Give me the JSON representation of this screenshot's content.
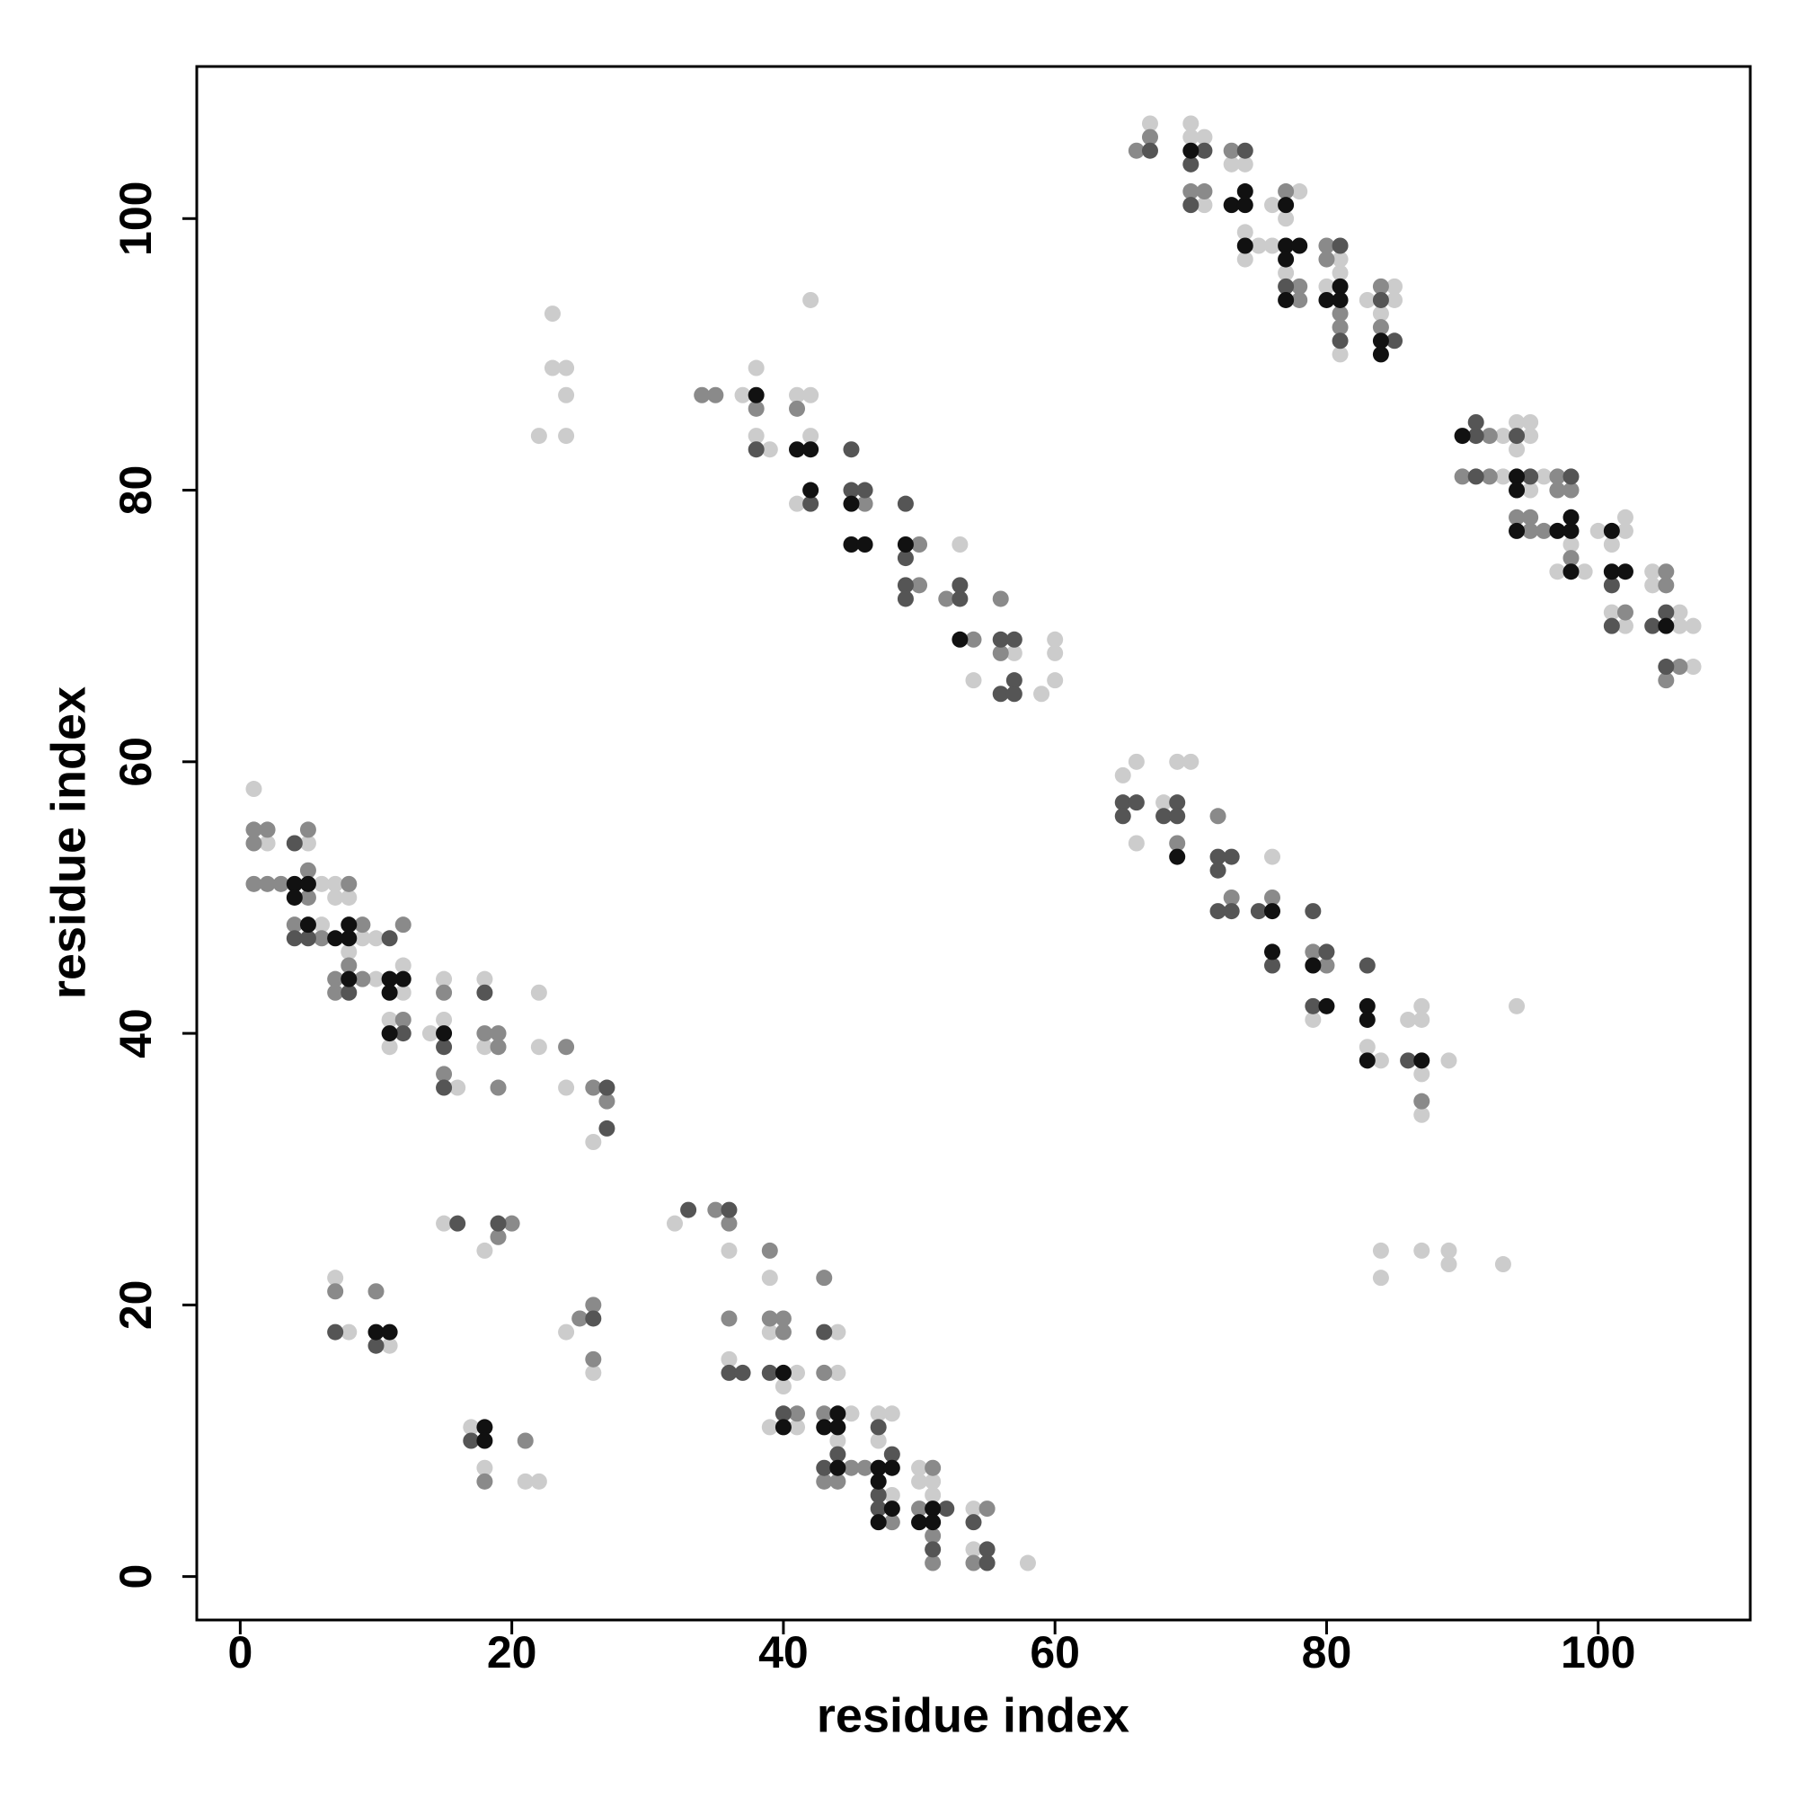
{
  "chart_data": {
    "type": "scatter",
    "xlabel": "residue index",
    "ylabel": "residue index",
    "xlim": [
      -3.2,
      111.2
    ],
    "ylim": [
      -3.2,
      111.2
    ],
    "xticks": [
      0,
      20,
      40,
      60,
      80,
      100
    ],
    "yticks": [
      0,
      20,
      40,
      60,
      80,
      100
    ],
    "series": [
      {
        "color": "#cccccc",
        "x": [
          1,
          2,
          5,
          6,
          7,
          7,
          8,
          6,
          9,
          10,
          8,
          10,
          12,
          12,
          11,
          11,
          14,
          15,
          15,
          18,
          18,
          16,
          22,
          22,
          24,
          26,
          7,
          8,
          11,
          15,
          18,
          24,
          26,
          17,
          18,
          21,
          22,
          32,
          36,
          39,
          39,
          44,
          36,
          41,
          44,
          40,
          45,
          39,
          41,
          44,
          47,
          48,
          47,
          48,
          50,
          50,
          51,
          51,
          54,
          54,
          58,
          23,
          23,
          24,
          24,
          22,
          24,
          42,
          37,
          38,
          38,
          39,
          41,
          42,
          42,
          41,
          53,
          57,
          54,
          59,
          60,
          60,
          60,
          65,
          66,
          69,
          70,
          68,
          66,
          76,
          79,
          83,
          84,
          86,
          87,
          87,
          87,
          87,
          89,
          94,
          84,
          84,
          87,
          89,
          89,
          93,
          67,
          70,
          70,
          71,
          73,
          74,
          71,
          76,
          78,
          77,
          74,
          75,
          76,
          77,
          74,
          81,
          81,
          80,
          81,
          83,
          85,
          84,
          85,
          93,
          94,
          95,
          95,
          93,
          95,
          94,
          96,
          98,
          97,
          99,
          100,
          102,
          102,
          101,
          101,
          102,
          104,
          104,
          106,
          107,
          106,
          107
        ],
        "y": [
          58,
          54,
          54,
          51,
          51,
          50,
          50,
          48,
          47,
          47,
          46,
          44,
          45,
          43,
          41,
          39,
          40,
          41,
          44,
          44,
          39,
          36,
          43,
          39,
          36,
          32,
          22,
          18,
          17,
          26,
          24,
          18,
          15,
          11,
          8,
          7,
          7,
          26,
          24,
          22,
          18,
          18,
          16,
          15,
          15,
          14,
          12,
          11,
          11,
          10,
          12,
          12,
          10,
          6,
          8,
          7,
          7,
          6,
          5,
          2,
          1,
          93,
          89,
          89,
          87,
          84,
          84,
          94,
          87,
          89,
          84,
          83,
          87,
          87,
          84,
          79,
          76,
          68,
          66,
          65,
          69,
          68,
          66,
          59,
          60,
          60,
          60,
          57,
          54,
          53,
          41,
          39,
          38,
          41,
          41,
          42,
          37,
          34,
          38,
          42,
          24,
          22,
          24,
          24,
          23,
          23,
          107,
          107,
          106,
          106,
          104,
          104,
          101,
          101,
          102,
          100,
          99,
          98,
          98,
          96,
          97,
          97,
          96,
          95,
          90,
          94,
          95,
          93,
          94,
          84,
          85,
          85,
          84,
          81,
          80,
          83,
          81,
          76,
          74,
          74,
          77,
          78,
          77,
          76,
          71,
          70,
          74,
          73,
          71,
          70,
          70,
          67
        ]
      },
      {
        "color": "#8a8a8a",
        "x": [
          1,
          2,
          1,
          5,
          1,
          2,
          3,
          5,
          5,
          8,
          4,
          6,
          9,
          12,
          8,
          7,
          9,
          7,
          12,
          15,
          18,
          19,
          19,
          15,
          19,
          24,
          26,
          27,
          7,
          10,
          20,
          19,
          25,
          26,
          26,
          21,
          18,
          35,
          36,
          39,
          43,
          36,
          39,
          40,
          40,
          43,
          41,
          43,
          45,
          46,
          43,
          44,
          48,
          51,
          50,
          51,
          51,
          55,
          54,
          34,
          35,
          38,
          41,
          46,
          50,
          50,
          52,
          56,
          54,
          56,
          69,
          72,
          73,
          76,
          79,
          80,
          87,
          66,
          67,
          73,
          70,
          71,
          77,
          78,
          78,
          80,
          80,
          81,
          81,
          84,
          84,
          92,
          90,
          92,
          97,
          97,
          98,
          94,
          95,
          95,
          96,
          98,
          102,
          105,
          105,
          106,
          105
        ],
        "y": [
          55,
          55,
          54,
          55,
          51,
          51,
          51,
          52,
          50,
          51,
          48,
          47,
          48,
          48,
          45,
          44,
          44,
          43,
          41,
          43,
          40,
          40,
          39,
          37,
          36,
          39,
          36,
          35,
          21,
          21,
          26,
          25,
          19,
          20,
          16,
          10,
          7,
          27,
          26,
          24,
          22,
          19,
          19,
          19,
          18,
          15,
          12,
          12,
          8,
          8,
          7,
          7,
          4,
          8,
          5,
          3,
          1,
          5,
          1,
          87,
          87,
          86,
          86,
          79,
          76,
          73,
          72,
          72,
          69,
          68,
          54,
          56,
          50,
          50,
          46,
          45,
          35,
          105,
          106,
          105,
          102,
          102,
          102,
          95,
          94,
          98,
          97,
          93,
          92,
          95,
          92,
          84,
          81,
          81,
          81,
          80,
          80,
          78,
          78,
          77,
          77,
          75,
          71,
          74,
          73,
          67,
          66
        ]
      },
      {
        "color": "#555555",
        "x": [
          4,
          4,
          5,
          11,
          8,
          12,
          15,
          18,
          15,
          27,
          27,
          7,
          10,
          16,
          19,
          26,
          17,
          33,
          36,
          43,
          36,
          37,
          39,
          40,
          44,
          43,
          47,
          48,
          47,
          47,
          52,
          51,
          54,
          55,
          55,
          38,
          45,
          42,
          45,
          46,
          49,
          49,
          49,
          49,
          53,
          53,
          56,
          57,
          57,
          56,
          57,
          65,
          66,
          69,
          65,
          68,
          69,
          72,
          73,
          72,
          72,
          73,
          75,
          76,
          79,
          80,
          79,
          83,
          86,
          67,
          71,
          70,
          74,
          70,
          77,
          81,
          81,
          84,
          85,
          91,
          91,
          94,
          91,
          95,
          98,
          101,
          101,
          104,
          105,
          105
        ],
        "y": [
          54,
          47,
          47,
          47,
          43,
          40,
          39,
          43,
          36,
          36,
          33,
          18,
          17,
          26,
          26,
          19,
          10,
          27,
          27,
          18,
          15,
          15,
          15,
          12,
          9,
          8,
          11,
          9,
          6,
          5,
          5,
          2,
          4,
          2,
          1,
          83,
          83,
          79,
          80,
          80,
          79,
          75,
          73,
          72,
          72,
          73,
          69,
          69,
          66,
          65,
          65,
          57,
          57,
          57,
          56,
          56,
          56,
          53,
          53,
          52,
          49,
          49,
          49,
          45,
          49,
          46,
          42,
          45,
          38,
          105,
          105,
          104,
          105,
          101,
          95,
          98,
          91,
          94,
          91,
          84,
          85,
          84,
          81,
          81,
          81,
          73,
          70,
          70,
          71,
          67
        ]
      },
      {
        "color": "#111111",
        "x": [
          4,
          5,
          4,
          5,
          7,
          8,
          8,
          8,
          11,
          12,
          11,
          11,
          15,
          10,
          11,
          18,
          18,
          40,
          44,
          40,
          43,
          44,
          44,
          47,
          48,
          47,
          48,
          47,
          51,
          50,
          51,
          38,
          41,
          42,
          42,
          45,
          45,
          46,
          49,
          53,
          69,
          76,
          76,
          79,
          80,
          83,
          83,
          83,
          87,
          70,
          73,
          74,
          74,
          77,
          74,
          77,
          78,
          77,
          77,
          81,
          80,
          81,
          84,
          84,
          90,
          94,
          94,
          94,
          97,
          98,
          98,
          98,
          101,
          101,
          102,
          105
        ],
        "y": [
          51,
          51,
          50,
          48,
          47,
          47,
          48,
          44,
          44,
          44,
          43,
          40,
          40,
          18,
          18,
          11,
          10,
          15,
          12,
          11,
          11,
          11,
          8,
          8,
          8,
          7,
          5,
          4,
          5,
          4,
          4,
          87,
          83,
          83,
          80,
          79,
          76,
          76,
          76,
          69,
          53,
          49,
          46,
          45,
          42,
          42,
          41,
          38,
          38,
          105,
          101,
          101,
          102,
          101,
          98,
          98,
          98,
          97,
          94,
          95,
          94,
          94,
          91,
          90,
          84,
          81,
          80,
          77,
          77,
          77,
          78,
          74,
          77,
          74,
          74,
          70
        ]
      }
    ]
  }
}
